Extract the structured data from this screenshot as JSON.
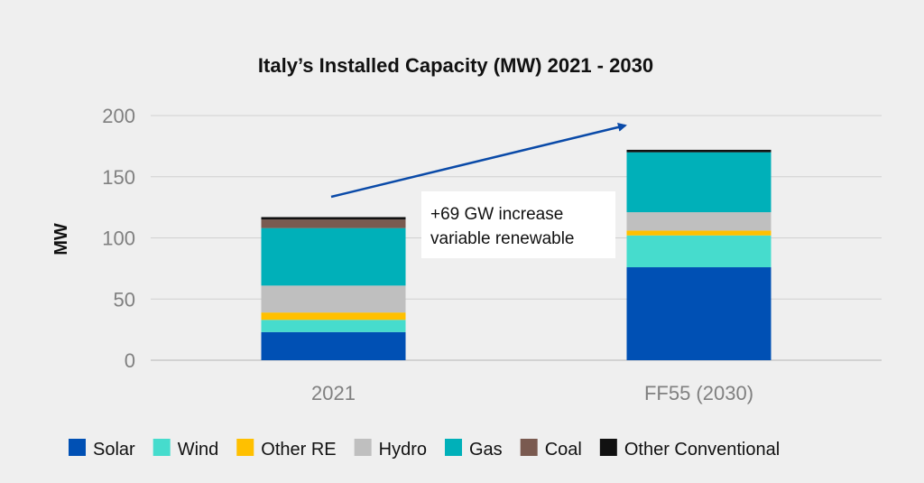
{
  "chart_data": {
    "type": "bar",
    "stacked": true,
    "title": "Italy’s Installed Capacity (MW) 2021 - 2030",
    "xlabel": "",
    "ylabel": "MW",
    "ylim": [
      0,
      200
    ],
    "yticks": [
      0,
      50,
      100,
      150,
      200
    ],
    "grid": true,
    "legend_position": "bottom",
    "categories": [
      "2021",
      "FF55 (2030)"
    ],
    "series": [
      {
        "name": "Solar",
        "color": "#0050b4",
        "values": [
          23,
          76
        ]
      },
      {
        "name": "Wind",
        "color": "#46dccd",
        "values": [
          10,
          26
        ]
      },
      {
        "name": "Other RE",
        "color": "#ffc000",
        "values": [
          6,
          4
        ]
      },
      {
        "name": "Hydro",
        "color": "#bfbfbf",
        "values": [
          22,
          15
        ]
      },
      {
        "name": "Gas",
        "color": "#00b0b9",
        "values": [
          47,
          49
        ]
      },
      {
        "name": "Coal",
        "color": "#7a5a50",
        "values": [
          7,
          0
        ]
      },
      {
        "name": "Other Conventional",
        "color": "#111111",
        "values": [
          2,
          2
        ]
      }
    ],
    "annotations": [
      {
        "text_lines": [
          "+69 GW increase",
          "variable renewable"
        ]
      }
    ]
  }
}
